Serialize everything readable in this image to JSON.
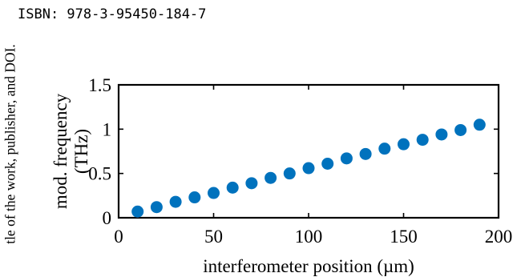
{
  "header": {
    "isbn": "ISBN: 978-3-95450-184-7",
    "margin_text": "tle of the work, publisher, and DOI."
  },
  "chart_data": {
    "type": "scatter",
    "xlabel": "interferometer position (µm)",
    "ylabel_line1": "mod. frequency",
    "ylabel_line2": "(THz)",
    "xlim": [
      0,
      200
    ],
    "ylim": [
      0,
      1.5
    ],
    "xticks": [
      0,
      50,
      100,
      150,
      200
    ],
    "xtick_labels": [
      "0",
      "50",
      "100",
      "150",
      "200"
    ],
    "yticks": [
      0,
      0.5,
      1,
      1.5
    ],
    "ytick_labels": [
      "0",
      "0.5",
      "1",
      "1.5"
    ],
    "grid": false,
    "marker_color": "#0072BD",
    "x": [
      10,
      20,
      30,
      40,
      50,
      60,
      70,
      80,
      90,
      100,
      110,
      120,
      130,
      140,
      150,
      160,
      170,
      180,
      190
    ],
    "y": [
      0.07,
      0.12,
      0.18,
      0.23,
      0.28,
      0.34,
      0.39,
      0.45,
      0.5,
      0.56,
      0.61,
      0.67,
      0.72,
      0.78,
      0.83,
      0.88,
      0.94,
      0.99,
      1.05
    ]
  }
}
